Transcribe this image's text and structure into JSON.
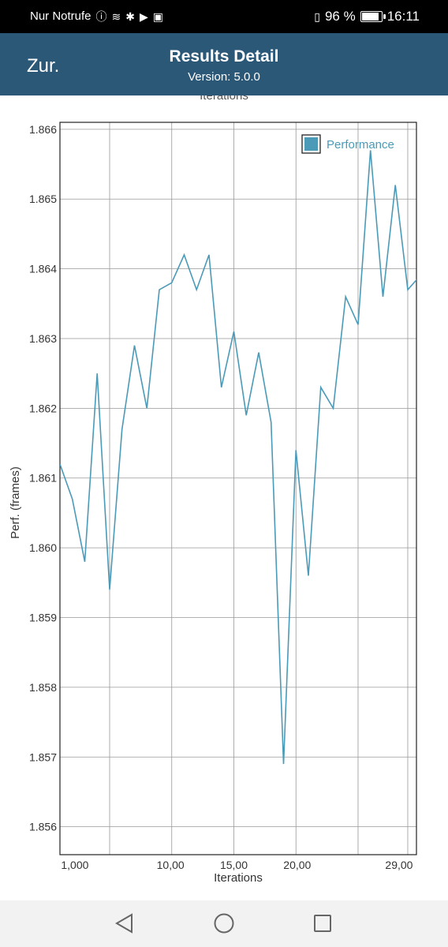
{
  "status_bar": {
    "carrier_text": "Nur Notrufe",
    "battery_percent_text": "96 %",
    "battery_level": 0.96,
    "time": "16:11",
    "icons": [
      "alert-icon",
      "wifi-icon",
      "settings-icon",
      "play-store-icon",
      "gallery-icon",
      "vibrate-icon"
    ]
  },
  "header": {
    "back_label": "Zur.",
    "title": "Results Detail",
    "subtitle": "Version: 5.0.0",
    "clipped_label": "Iterations"
  },
  "chart_data": {
    "type": "line",
    "xlabel": "Iterations",
    "ylabel": "Perf. (frames)",
    "ylim": [
      1.8556,
      1.8661
    ],
    "xlim": [
      1,
      29.7
    ],
    "y_ticks": [
      "1.856",
      "1.857",
      "1.858",
      "1.859",
      "1.860",
      "1.861",
      "1.862",
      "1.863",
      "1.864",
      "1.865",
      "1.866"
    ],
    "y_tick_values": [
      1.856,
      1.857,
      1.858,
      1.859,
      1.86,
      1.861,
      1.862,
      1.863,
      1.864,
      1.865,
      1.866
    ],
    "x_ticks": [
      "1,000",
      "10,00",
      "15,00",
      "20,00",
      "29,00"
    ],
    "x_tick_values": [
      2.2,
      9.9,
      15.0,
      20.1,
      28.3
    ],
    "x_gridlines": [
      5,
      10,
      15,
      20,
      25,
      29
    ],
    "legend_position": "top-right",
    "series": [
      {
        "name": "Performance",
        "color": "#4a9ab8",
        "x": [
          1,
          2,
          3,
          4,
          5,
          6,
          7,
          8,
          9,
          10,
          11,
          12,
          13,
          14,
          15,
          16,
          17,
          18,
          19,
          20,
          21,
          22,
          23,
          24,
          25,
          26,
          27,
          28,
          29,
          30
        ],
        "values": [
          1.8612,
          1.8607,
          1.8598,
          1.8625,
          1.8594,
          1.8617,
          1.8629,
          1.862,
          1.8637,
          1.8638,
          1.8642,
          1.8637,
          1.8642,
          1.8623,
          1.8631,
          1.8619,
          1.8628,
          1.8618,
          1.8569,
          1.8614,
          1.8596,
          1.8623,
          1.862,
          1.8636,
          1.8632,
          1.8657,
          1.8636,
          1.8652,
          1.8637,
          1.8639
        ]
      }
    ]
  }
}
